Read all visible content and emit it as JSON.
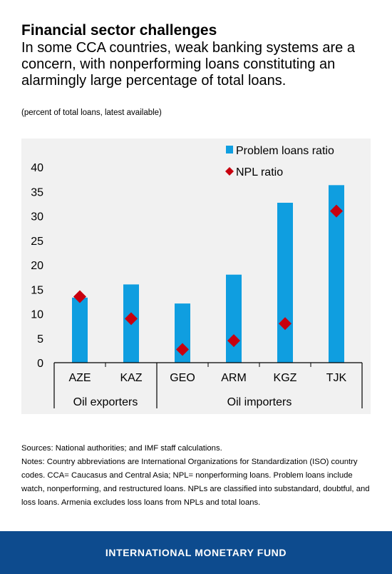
{
  "header": {
    "title": "Financial sector challenges",
    "subtitle": "In some CCA countries, weak banking systems are a concern, with nonperforming loans constituting an alarmingly large percentage of total loans.",
    "unit_note": "(percent of total loans, latest available)"
  },
  "chart_data": {
    "type": "bar",
    "categories": [
      "AZE",
      "KAZ",
      "GEO",
      "ARM",
      "KGZ",
      "TJK"
    ],
    "groups": [
      {
        "label": "Oil exporters",
        "categories": [
          "AZE",
          "KAZ"
        ]
      },
      {
        "label": "Oil importers",
        "categories": [
          "GEO",
          "ARM",
          "KGZ",
          "TJK"
        ]
      }
    ],
    "series": [
      {
        "name": "Problem loans ratio",
        "type": "bar",
        "color": "#0f9ee0",
        "values": [
          13.3,
          16.0,
          12.1,
          18.0,
          32.7,
          36.3
        ]
      },
      {
        "name": "NPL ratio",
        "type": "scatter",
        "marker": "diamond",
        "color": "#c8000f",
        "values": [
          13.5,
          9.0,
          2.7,
          4.5,
          8.0,
          31.0
        ]
      }
    ],
    "yticks": [
      0,
      5,
      10,
      15,
      20,
      25,
      30,
      35,
      40
    ],
    "ylim": [
      0,
      40
    ],
    "legend_position": "top-right",
    "grid": false,
    "plot_background": "#f1f1f1"
  },
  "notes": {
    "sources": "Sources: National authorities; and IMF staff calculations.",
    "notes": "Notes: Country abbreviations are International Organizations for Standardization (ISO) country codes. CCA= Caucasus and Central Asia; NPL= nonperforming loans. Problem loans include watch, nonperforming, and restructured loans. NPLs are classified into substandard, doubtful, and loss loans. Armenia excludes loss loans from NPLs and total loans."
  },
  "footer": {
    "org_name": "INTERNATIONAL MONETARY FUND",
    "background": "#0d4b8e"
  }
}
